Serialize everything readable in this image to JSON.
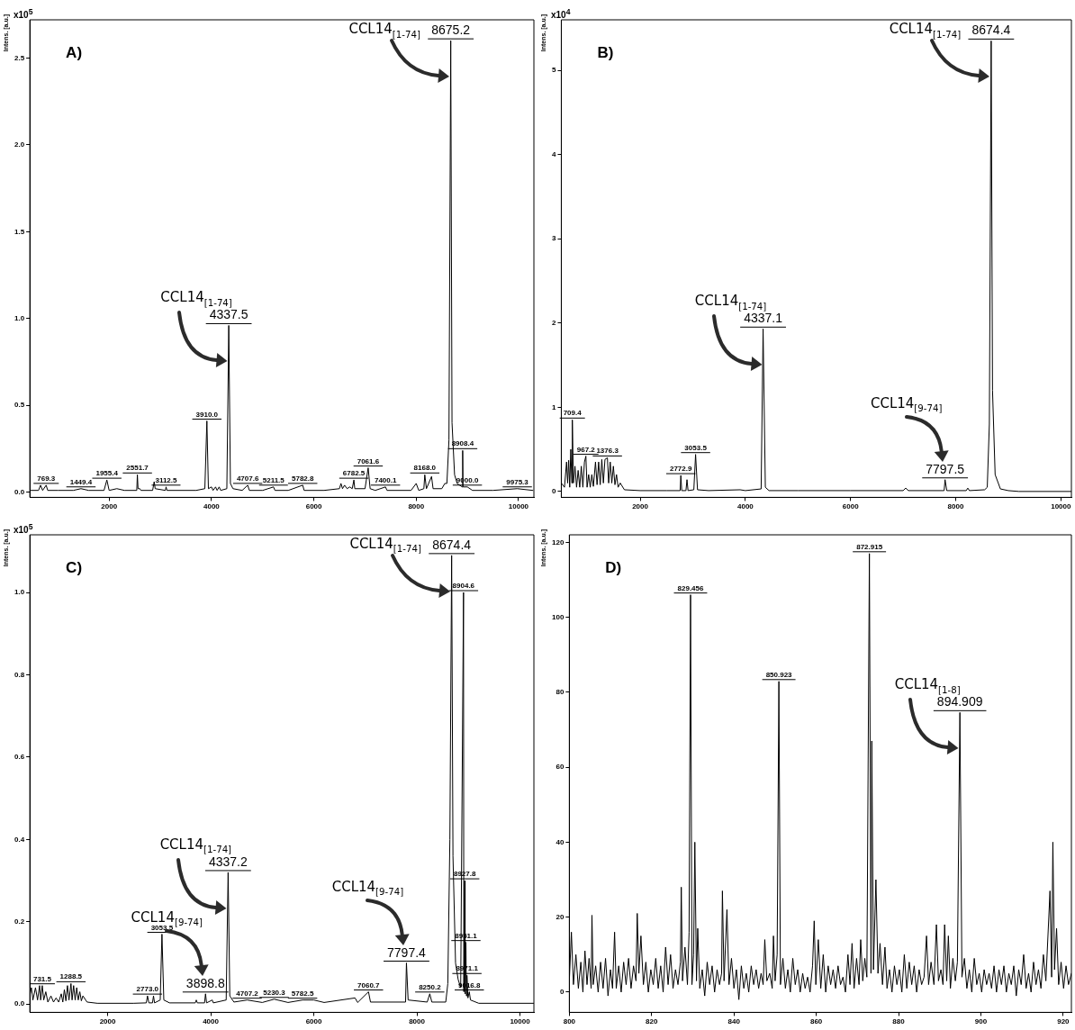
{
  "chart_data": [
    {
      "type": "line",
      "title": "A)",
      "ylabel": "Intens. [a.u.]",
      "color": "#000000",
      "marker": "none",
      "annotations": [
        "x10$^{5}$",
        {
          "text": "769.3",
          "x": 769.3,
          "y": 0.04
        },
        {
          "text": "1449.4",
          "x": 1449.4,
          "y": 0.02
        },
        {
          "text": "1955.4",
          "x": 1955.4,
          "y": 0.07
        },
        {
          "text": "2551.7",
          "x": 2551.7,
          "y": 0.1
        },
        {
          "text": "3112.5",
          "x": 3112.5,
          "y": 0.03
        },
        {
          "text": "3910.0",
          "x": 3910.0,
          "y": 0.41
        },
        {
          "text": "4337.5",
          "x": 4337.5,
          "y": 0.96
        },
        "CCL14$_{[1-74]}$",
        {
          "text": "4707.6",
          "x": 4707.6,
          "y": 0.04
        },
        {
          "text": "5211.5",
          "x": 5211.5,
          "y": 0.03
        },
        {
          "text": "5782.8",
          "x": 5782.8,
          "y": 0.04
        },
        {
          "text": "6782.5",
          "x": 6782.5,
          "y": 0.07
        },
        {
          "text": "7061.6",
          "x": 7061.6,
          "y": 0.14
        },
        {
          "text": "7400.1",
          "x": 7400.1,
          "y": 0.03
        },
        {
          "text": "8168.0",
          "x": 8168.0,
          "y": 0.1
        },
        {
          "text": "8675.2",
          "x": 8675.2,
          "y": 2.6
        },
        "CCL14$_{[1-74]}$",
        {
          "text": "8908.4",
          "x": 8908.4,
          "y": 0.24
        },
        {
          "text": "9000.0",
          "x": 9000.0,
          "y": 0.03
        },
        {
          "text": "9975.3",
          "x": 9975.3,
          "y": 0.02
        }
      ],
      "xlim": [
        450,
        10300
      ],
      "xticks": [
        2000,
        4000,
        6000,
        8000,
        10000
      ],
      "ylim": [
        -0.03,
        2.72
      ],
      "yticks": [
        {
          "value": 0,
          "label": "0.0"
        },
        {
          "value": 0.5,
          "label": "0.5"
        },
        {
          "value": 1,
          "label": "1.0"
        },
        {
          "value": 1.5,
          "label": "1.5"
        },
        {
          "value": 2,
          "label": "2.0"
        },
        {
          "value": 2.5,
          "label": "2.5"
        }
      ],
      "x": [
        470,
        620,
        660,
        700,
        769.3,
        800,
        1000,
        1300,
        1449.4,
        1600,
        1900,
        1955.4,
        2000,
        2150,
        2300,
        2540,
        2551.7,
        2565,
        2600,
        2620,
        2850,
        2880,
        2900,
        3100,
        3112.5,
        3130,
        3700,
        3870,
        3910.0,
        3940,
        4000,
        4030,
        4080,
        4110,
        4150,
        4180,
        4300,
        4337.5,
        4370,
        4420,
        4600,
        4707.6,
        4740,
        5000,
        5211.5,
        5240,
        5500,
        5782.8,
        5810,
        6200,
        6500,
        6530,
        6560,
        6600,
        6650,
        6700,
        6750,
        6782.5,
        6800,
        7000,
        7061.6,
        7100,
        7200,
        7400.1,
        7430,
        7900,
        8000,
        8050,
        8150,
        8168.0,
        8200,
        8300,
        8330,
        8500,
        8560,
        8600,
        8640,
        8675.2,
        8700,
        8750,
        8800,
        8900,
        8908.4,
        8915,
        9000.0,
        9100,
        9500,
        9975.3,
        10280
      ],
      "values": [
        0.01,
        0.01,
        0.04,
        0.01,
        0.04,
        0.01,
        0.01,
        0.01,
        0.02,
        0.01,
        0.01,
        0.07,
        0.01,
        0.02,
        0.01,
        0.01,
        0.1,
        0.02,
        0.02,
        0.01,
        0.01,
        0.06,
        0.02,
        0.01,
        0.03,
        0.01,
        0.01,
        0.02,
        0.41,
        0.02,
        0.03,
        0.01,
        0.03,
        0.01,
        0.03,
        0.01,
        0.02,
        0.96,
        0.05,
        0.02,
        0.01,
        0.04,
        0.01,
        0.01,
        0.03,
        0.01,
        0.01,
        0.04,
        0.01,
        0.01,
        0.02,
        0.05,
        0.02,
        0.04,
        0.02,
        0.03,
        0.02,
        0.07,
        0.02,
        0.02,
        0.14,
        0.02,
        0.01,
        0.03,
        0.01,
        0.01,
        0.05,
        0.01,
        0.02,
        0.1,
        0.02,
        0.09,
        0.02,
        0.02,
        0.05,
        0.05,
        0.3,
        2.6,
        0.4,
        0.1,
        0.05,
        0.03,
        0.24,
        0.03,
        0.03,
        0.01,
        0.01,
        0.02,
        0.01
      ]
    },
    {
      "type": "line",
      "title": "B)",
      "ylabel": "Intens. [a.u.]",
      "color": "#000000",
      "marker": "none",
      "annotations": [
        "x10$^{4}$",
        {
          "text": "709.4",
          "x": 709.4,
          "y": 0.85
        },
        {
          "text": "967.2",
          "x": 967.2,
          "y": 0.42
        },
        {
          "text": "1376.3",
          "x": 1376.3,
          "y": 0.4
        },
        {
          "text": "2772.9",
          "x": 2772.9,
          "y": 0.19
        },
        {
          "text": "3053.5",
          "x": 3053.5,
          "y": 0.44
        },
        {
          "text": "4337.1",
          "x": 4337.1,
          "y": 1.93
        },
        "CCL14$_{[1-74]}$",
        {
          "text": "7797.5",
          "x": 7797.5,
          "y": 0.14
        },
        "CCL14$_{[9-74]}$",
        {
          "text": "8674.4",
          "x": 8674.4,
          "y": 5.35
        },
        "CCL14$_{[1-74]}$"
      ],
      "xlim": [
        500,
        10200
      ],
      "xticks": [
        2000,
        4000,
        6000,
        8000,
        10000
      ],
      "ylim": [
        -0.07,
        5.6
      ],
      "yticks": [
        0,
        1,
        2,
        3,
        4,
        5
      ],
      "x": [
        500,
        560,
        600,
        620,
        640,
        660,
        680,
        700,
        709.4,
        730,
        760,
        790,
        820,
        850,
        880,
        910,
        940,
        967.2,
        990,
        1020,
        1050,
        1080,
        1110,
        1150,
        1180,
        1210,
        1240,
        1270,
        1300,
        1330,
        1376.3,
        1400,
        1430,
        1460,
        1490,
        1520,
        1550,
        1580,
        1620,
        1700,
        2000,
        2500,
        2760,
        2772.9,
        2790,
        2870,
        2890,
        2910,
        3020,
        3053.5,
        3090,
        3300,
        3900,
        4000,
        4300,
        4337.1,
        4380,
        4450,
        5000,
        6000,
        7000,
        7050,
        7100,
        7780,
        7797.5,
        7830,
        8200,
        8230,
        8260,
        8550,
        8600,
        8640,
        8674.4,
        8700,
        8750,
        8850,
        9000,
        9200,
        10200
      ],
      "values": [
        0.1,
        0.05,
        0.35,
        0.1,
        0.37,
        0.05,
        0.5,
        0.1,
        0.85,
        0.1,
        0.3,
        0.05,
        0.25,
        0.05,
        0.3,
        0.05,
        0.35,
        0.42,
        0.05,
        0.2,
        0.05,
        0.2,
        0.06,
        0.35,
        0.08,
        0.35,
        0.08,
        0.38,
        0.1,
        0.38,
        0.4,
        0.1,
        0.35,
        0.1,
        0.3,
        0.08,
        0.2,
        0.05,
        0.1,
        0.02,
        0.01,
        0.01,
        0.01,
        0.19,
        0.01,
        0.01,
        0.14,
        0.01,
        0.02,
        0.44,
        0.02,
        0.01,
        0.02,
        0.01,
        0.03,
        1.93,
        0.05,
        0.01,
        0.01,
        0.01,
        0.01,
        0.04,
        0.01,
        0.01,
        0.14,
        0.01,
        0.01,
        0.04,
        0.01,
        0.02,
        0.05,
        0.8,
        5.35,
        1.2,
        0.2,
        0.03,
        0.01,
        0,
        0
      ]
    },
    {
      "type": "line",
      "title": "C)",
      "ylabel": "Intens. [a.u.]",
      "color": "#000000",
      "marker": "none",
      "annotations": [
        "x10$^{5}$",
        {
          "text": "731.5",
          "x": 731.5,
          "y": 0.045
        },
        {
          "text": "1288.5",
          "x": 1288.5,
          "y": 0.05
        },
        {
          "text": "2773.0",
          "x": 2773.0,
          "y": 0.02
        },
        {
          "text": "3053.5",
          "x": 3053.5,
          "y": 0.17
        },
        {
          "text": "3898.8",
          "x": 3898.8,
          "y": 0.025
        },
        "CCL14$_{[9-74]}$",
        {
          "text": "4337.2",
          "x": 4337.2,
          "y": 0.32
        },
        "CCL14$_{[1-74]}$",
        {
          "text": "4707.2",
          "x": 4707.2,
          "y": 0.01
        },
        {
          "text": "5230.3",
          "x": 5230.3,
          "y": 0.012
        },
        {
          "text": "5782.5",
          "x": 5782.5,
          "y": 0.01
        },
        {
          "text": "7060.7",
          "x": 7060.7,
          "y": 0.03
        },
        {
          "text": "7797.4",
          "x": 7797.4,
          "y": 0.1
        },
        "CCL14$_{[9-74]}$",
        {
          "text": "8250.2",
          "x": 8250.2,
          "y": 0.025
        },
        {
          "text": "8674.4",
          "x": 8674.4,
          "y": 1.09
        },
        "CCL14$_{[1-74]}$",
        {
          "text": "8904.6",
          "x": 8904.6,
          "y": 1.0
        },
        {
          "text": "8927.8",
          "x": 8927.8,
          "y": 0.3
        },
        {
          "text": "8951.1",
          "x": 8951.1,
          "y": 0.15
        },
        {
          "text": "8971.1",
          "x": 8971.1,
          "y": 0.07
        },
        {
          "text": "9016.8",
          "x": 9016.8,
          "y": 0.03
        }
      ],
      "xlim": [
        490,
        10270
      ],
      "xticks": [
        2000,
        4000,
        6000,
        8000,
        10000
      ],
      "ylim": [
        -0.02,
        1.14
      ],
      "yticks": [
        {
          "value": 0,
          "label": "0.0"
        },
        {
          "value": 0.2,
          "label": "0.2"
        },
        {
          "value": 0.4,
          "label": "0.4"
        },
        {
          "value": 0.6,
          "label": "0.6"
        },
        {
          "value": 0.8,
          "label": "0.8"
        },
        {
          "value": 1,
          "label": "1.0"
        }
      ],
      "x": [
        490,
        520,
        550,
        600,
        640,
        680,
        700,
        731.5,
        760,
        800,
        840,
        900,
        950,
        1000,
        1050,
        1100,
        1130,
        1160,
        1190,
        1220,
        1250,
        1288.5,
        1310,
        1340,
        1370,
        1400,
        1430,
        1460,
        1490,
        1520,
        1600,
        1800,
        2500,
        2750,
        2773.0,
        2800,
        2870,
        2890,
        2910,
        3020,
        3053.5,
        3090,
        3200,
        3700,
        3720,
        3740,
        3880,
        3898.8,
        3920,
        4030,
        4050,
        4300,
        4337.2,
        4370,
        4450,
        4707.2,
        5000,
        5230.3,
        5500,
        5782.5,
        6000,
        6200,
        6800,
        6850,
        7060.7,
        7100,
        7780,
        7797.4,
        7830,
        8200,
        8250.2,
        8290,
        8560,
        8600,
        8640,
        8674.4,
        8700,
        8750,
        8800,
        8850,
        8904.6,
        8910,
        8927.8,
        8935,
        8951.1,
        8960,
        8971.1,
        8990,
        9016.8,
        9040,
        9200,
        10270
      ],
      "values": [
        0.02,
        0.04,
        0.01,
        0.04,
        0.01,
        0.045,
        0.01,
        0.045,
        0.01,
        0.03,
        0.005,
        0.02,
        0.005,
        0.015,
        0.005,
        0.025,
        0.005,
        0.035,
        0.008,
        0.045,
        0.01,
        0.05,
        0.01,
        0.045,
        0.01,
        0.04,
        0.01,
        0.03,
        0.008,
        0.02,
        0.005,
        0.002,
        0.002,
        0.003,
        0.02,
        0.003,
        0.003,
        0.02,
        0.003,
        0.01,
        0.17,
        0.01,
        0.003,
        0.003,
        0.01,
        0.003,
        0.003,
        0.025,
        0.003,
        0.01,
        0.003,
        0.01,
        0.32,
        0.02,
        0.005,
        0.01,
        0.004,
        0.012,
        0.004,
        0.01,
        0.01,
        0.004,
        0.015,
        0.004,
        0.03,
        0.005,
        0.005,
        0.1,
        0.01,
        0.005,
        0.025,
        0.005,
        0.005,
        0.05,
        0.4,
        1.09,
        0.36,
        0.1,
        0.06,
        0.04,
        1.0,
        0.03,
        0.3,
        0.025,
        0.15,
        0.02,
        0.07,
        0.015,
        0.03,
        0.01,
        0.002,
        0.002
      ]
    },
    {
      "type": "line",
      "title": "D)",
      "ylabel": "Intens. [a.u.]",
      "color": "#000000",
      "marker": "none",
      "annotations": [
        {
          "text": "829.456",
          "x": 829.456,
          "y": 106
        },
        {
          "text": "850.923",
          "x": 850.923,
          "y": 82.9
        },
        {
          "text": "872.915",
          "x": 872.915,
          "y": 117
        },
        {
          "text": "894.909",
          "x": 894.909,
          "y": 74.6
        },
        "CCL14$_{[1-8]}$"
      ],
      "xlim": [
        800,
        922
      ],
      "xticks": [
        800,
        820,
        840,
        860,
        880,
        900,
        920
      ],
      "ylim": [
        -5.4,
        122
      ],
      "yticks": [
        0,
        20,
        40,
        60,
        80,
        100,
        120
      ],
      "x": [
        800,
        800.5,
        801,
        801.6,
        802.2,
        802.8,
        803.3,
        803.8,
        804.3,
        804.8,
        805.3,
        805.5,
        805.8,
        806.4,
        807,
        807.6,
        808.2,
        808.8,
        809.4,
        810,
        810.5,
        811,
        811.4,
        812,
        812.6,
        813.2,
        813.8,
        814.4,
        815,
        815.6,
        816.2,
        816.5,
        816.9,
        817.4,
        818,
        818.6,
        819.2,
        819.8,
        820.4,
        821,
        821.6,
        822.2,
        822.8,
        823.4,
        824,
        824.6,
        825.2,
        825.8,
        826.4,
        827,
        827.2,
        827.5,
        828.1,
        828.7,
        829.1,
        829.456,
        829.8,
        830.2,
        830.5,
        830.9,
        831.2,
        831.7,
        832.3,
        832.9,
        833.5,
        834.1,
        834.7,
        835.3,
        835.9,
        836.5,
        837,
        837.2,
        837.6,
        838.3,
        838.8,
        839.4,
        840,
        840.6,
        841.2,
        841.8,
        842.4,
        843,
        843.6,
        844.2,
        844.8,
        845.4,
        846,
        846.6,
        847.1,
        847.5,
        848,
        848.7,
        849.3,
        849.6,
        850,
        850.5,
        850.923,
        851.3,
        851.9,
        852.5,
        853.1,
        853.7,
        854.3,
        854.9,
        855.5,
        856.1,
        856.7,
        857.3,
        857.9,
        858.5,
        859.1,
        859.5,
        859.9,
        860.5,
        861.1,
        861.7,
        862.3,
        862.9,
        863.5,
        864.1,
        864.7,
        865.3,
        865.9,
        866.5,
        867.1,
        867.7,
        868.2,
        868.7,
        869.2,
        869.8,
        870.4,
        870.8,
        871.3,
        871.8,
        872.3,
        872.915,
        873.3,
        873.5,
        873.9,
        874.5,
        875,
        875.5,
        876.1,
        876.7,
        877.2,
        877.8,
        878.4,
        879,
        879.6,
        880.2,
        880.8,
        881.4,
        882,
        882.6,
        883.2,
        883.8,
        884.4,
        885,
        885.6,
        886.2,
        886.8,
        887.3,
        887.9,
        888.6,
        889.2,
        889.7,
        890.3,
        890.8,
        891.2,
        891.7,
        892.1,
        892.6,
        893.2,
        893.8,
        894.3,
        894.909,
        895.4,
        896,
        896.6,
        897.2,
        897.8,
        898.4,
        899,
        899.6,
        900.2,
        900.8,
        901.4,
        902,
        902.6,
        903.2,
        903.8,
        904.4,
        905,
        905.6,
        906.2,
        906.8,
        907.4,
        908,
        908.6,
        909.2,
        909.8,
        910.4,
        911,
        911.6,
        912.2,
        912.8,
        913.4,
        914,
        914.6,
        915.2,
        915.8,
        916.8,
        917.2,
        917.5,
        917.9,
        918.4,
        918.9,
        919.5,
        920.1,
        920.7,
        921.3,
        922
      ],
      "values": [
        3,
        16,
        2,
        10,
        1,
        8,
        0,
        11,
        2,
        9,
        1,
        20.5,
        2,
        7,
        0,
        8,
        1,
        9,
        -1,
        6,
        1,
        16,
        1,
        7,
        0,
        8,
        2,
        9,
        1,
        7,
        3,
        21,
        5,
        15,
        2,
        8,
        0,
        6,
        2,
        9,
        1,
        7,
        0,
        12,
        2,
        10,
        1,
        6,
        2,
        8,
        28,
        3,
        12,
        2,
        16,
        106,
        2,
        10,
        40,
        3,
        17,
        1,
        6,
        -1,
        8,
        2,
        7,
        0,
        6,
        2,
        5,
        27,
        3,
        22,
        2,
        9,
        1,
        6,
        -2,
        7,
        1,
        5,
        0,
        7,
        2,
        6,
        1,
        5,
        2,
        14,
        3,
        5,
        1,
        15,
        3,
        10,
        82.9,
        2,
        9,
        1,
        6,
        0,
        9,
        2,
        6,
        0,
        5,
        1,
        4,
        0,
        7,
        19,
        2,
        14,
        1,
        10,
        0,
        7,
        2,
        6,
        1,
        7,
        2,
        4,
        0,
        10,
        2,
        13,
        1,
        9,
        2,
        14,
        3,
        9,
        4,
        117,
        5,
        67,
        6,
        30,
        5,
        13,
        2,
        12,
        1,
        6,
        0,
        7,
        2,
        6,
        0,
        10,
        1,
        8,
        2,
        7,
        0,
        6,
        2,
        4,
        15,
        2,
        8,
        2,
        18,
        3,
        6,
        2,
        18,
        3,
        15,
        1,
        9,
        3,
        8,
        74.6,
        4,
        9,
        1,
        6,
        0,
        9,
        2,
        5,
        0,
        6,
        2,
        5,
        1,
        7,
        0,
        6,
        2,
        7,
        0,
        5,
        2,
        7,
        -1,
        6,
        2,
        10,
        1,
        5,
        0,
        8,
        2,
        6,
        1,
        10,
        3,
        27,
        4,
        40,
        6,
        17,
        2,
        8,
        1,
        7,
        2,
        5
      ]
    }
  ]
}
